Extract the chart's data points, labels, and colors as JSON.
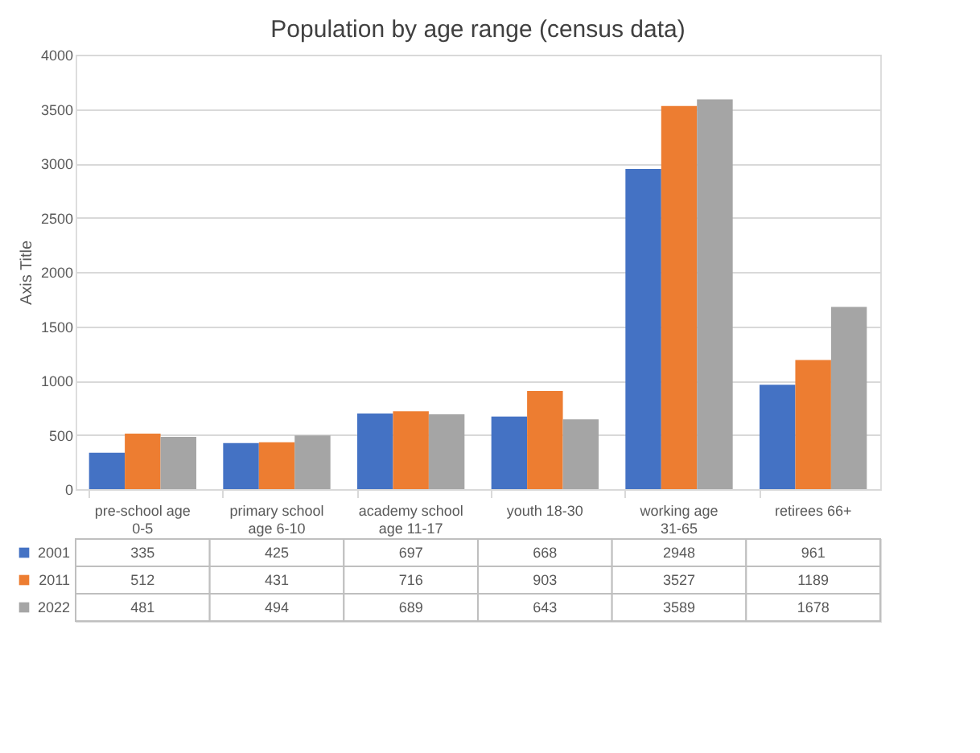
{
  "chart_data": {
    "type": "bar",
    "title": "Population by age range (census data)",
    "ylabel": "Axis Title",
    "categories": [
      "pre-school age 0-5",
      "primary school age 6-10",
      "academy school age 11-17",
      "youth 18-30",
      "working age 31-65",
      "retirees 66+"
    ],
    "series": [
      {
        "name": "2001",
        "color": "#4472c4",
        "values": [
          335,
          425,
          697,
          668,
          2948,
          961
        ]
      },
      {
        "name": "2011",
        "color": "#ed7d31",
        "values": [
          512,
          431,
          716,
          903,
          3527,
          1189
        ]
      },
      {
        "name": "2022",
        "color": "#a5a5a5",
        "values": [
          481,
          494,
          689,
          643,
          3589,
          1678
        ]
      }
    ],
    "ylim": [
      0,
      4000
    ],
    "yticks": [
      0,
      500,
      1000,
      1500,
      2000,
      2500,
      3000,
      3500,
      4000
    ],
    "grid": "y",
    "data_labels": true,
    "legend": "bottom"
  }
}
